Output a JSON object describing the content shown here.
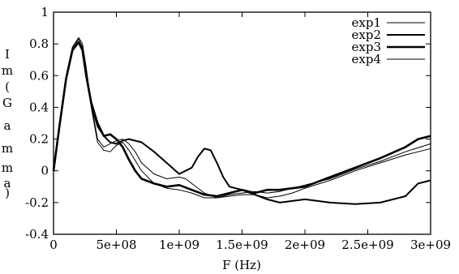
{
  "chart_data": {
    "type": "line",
    "xlabel": "F (Hz)",
    "ylabel": "Im(Gamma)",
    "xlim": [
      0,
      3000000000
    ],
    "ylim": [
      -0.4,
      1.0
    ],
    "xticks": [
      0,
      500000000,
      1000000000,
      1500000000,
      2000000000,
      2500000000,
      3000000000
    ],
    "xtick_labels": [
      "0",
      "5e+08",
      "1e+09",
      "1.5e+09",
      "2e+09",
      "2.5e+09",
      "3e+09"
    ],
    "yticks": [
      -0.4,
      -0.2,
      0,
      0.2,
      0.4,
      0.6,
      0.8,
      1
    ],
    "ytick_labels": [
      "-0.4",
      "-0.2",
      "0",
      "0.2",
      "0.4",
      "0.6",
      "0.8",
      "1"
    ],
    "grid": false,
    "legend_position": "top-right",
    "series": [
      {
        "name": "exp1",
        "stroke_width": 1.0,
        "x": [
          0,
          50000000,
          100000000,
          150000000,
          200000000,
          230000000,
          260000000,
          300000000,
          350000000,
          400000000,
          450000000,
          500000000,
          550000000,
          600000000,
          650000000,
          700000000,
          800000000,
          900000000,
          1000000000,
          1050000000,
          1100000000,
          1200000000,
          1300000000,
          1400000000,
          1500000000,
          1600000000,
          1700000000,
          1800000000,
          1900000000,
          2000000000,
          2200000000,
          2400000000,
          2600000000,
          2800000000,
          3000000000
        ],
        "y": [
          0.0,
          0.3,
          0.6,
          0.78,
          0.84,
          0.8,
          0.65,
          0.42,
          0.2,
          0.15,
          0.17,
          0.19,
          0.2,
          0.17,
          0.12,
          0.05,
          -0.02,
          -0.05,
          -0.04,
          -0.05,
          -0.08,
          -0.14,
          -0.17,
          -0.15,
          -0.14,
          -0.13,
          -0.14,
          -0.13,
          -0.11,
          -0.09,
          -0.05,
          0.01,
          0.06,
          0.12,
          0.17
        ]
      },
      {
        "name": "exp2",
        "stroke_width": 2.0,
        "x": [
          0,
          50000000,
          100000000,
          150000000,
          200000000,
          230000000,
          260000000,
          300000000,
          350000000,
          400000000,
          450000000,
          500000000,
          550000000,
          600000000,
          700000000,
          800000000,
          900000000,
          1000000000,
          1100000000,
          1150000000,
          1200000000,
          1250000000,
          1300000000,
          1350000000,
          1400000000,
          1500000000,
          1600000000,
          1700000000,
          1800000000,
          1900000000,
          2000000000,
          2200000000,
          2400000000,
          2600000000,
          2800000000,
          2900000000,
          3000000000
        ],
        "y": [
          0.0,
          0.3,
          0.58,
          0.76,
          0.81,
          0.76,
          0.6,
          0.42,
          0.28,
          0.22,
          0.18,
          0.17,
          0.19,
          0.2,
          0.18,
          0.12,
          0.05,
          -0.02,
          0.02,
          0.09,
          0.14,
          0.13,
          0.05,
          -0.04,
          -0.1,
          -0.12,
          -0.15,
          -0.18,
          -0.2,
          -0.19,
          -0.18,
          -0.2,
          -0.21,
          -0.2,
          -0.16,
          -0.08,
          -0.06
        ]
      },
      {
        "name": "exp3",
        "stroke_width": 2.6,
        "x": [
          0,
          50000000,
          100000000,
          150000000,
          200000000,
          230000000,
          260000000,
          300000000,
          350000000,
          400000000,
          450000000,
          500000000,
          550000000,
          600000000,
          650000000,
          700000000,
          800000000,
          900000000,
          1000000000,
          1100000000,
          1200000000,
          1300000000,
          1400000000,
          1500000000,
          1600000000,
          1700000000,
          1800000000,
          1900000000,
          2000000000,
          2200000000,
          2400000000,
          2600000000,
          2800000000,
          2900000000,
          3000000000
        ],
        "y": [
          0.0,
          0.3,
          0.58,
          0.76,
          0.81,
          0.76,
          0.6,
          0.43,
          0.3,
          0.22,
          0.23,
          0.2,
          0.15,
          0.07,
          0.0,
          -0.05,
          -0.08,
          -0.1,
          -0.09,
          -0.12,
          -0.15,
          -0.16,
          -0.14,
          -0.12,
          -0.14,
          -0.12,
          -0.12,
          -0.11,
          -0.1,
          -0.04,
          0.02,
          0.08,
          0.15,
          0.2,
          0.22
        ]
      },
      {
        "name": "exp4",
        "stroke_width": 1.0,
        "x": [
          0,
          50000000,
          100000000,
          150000000,
          200000000,
          230000000,
          260000000,
          300000000,
          350000000,
          400000000,
          450000000,
          500000000,
          550000000,
          600000000,
          700000000,
          800000000,
          900000000,
          1000000000,
          1100000000,
          1200000000,
          1300000000,
          1400000000,
          1500000000,
          1600000000,
          1700000000,
          1800000000,
          1900000000,
          2000000000,
          2200000000,
          2400000000,
          2600000000,
          2800000000,
          3000000000
        ],
        "y": [
          0.0,
          0.3,
          0.58,
          0.77,
          0.83,
          0.78,
          0.62,
          0.4,
          0.18,
          0.13,
          0.12,
          0.16,
          0.18,
          0.13,
          0.0,
          -0.08,
          -0.11,
          -0.12,
          -0.14,
          -0.17,
          -0.17,
          -0.16,
          -0.15,
          -0.15,
          -0.17,
          -0.16,
          -0.14,
          -0.11,
          -0.06,
          0.0,
          0.05,
          0.1,
          0.14
        ]
      }
    ]
  }
}
